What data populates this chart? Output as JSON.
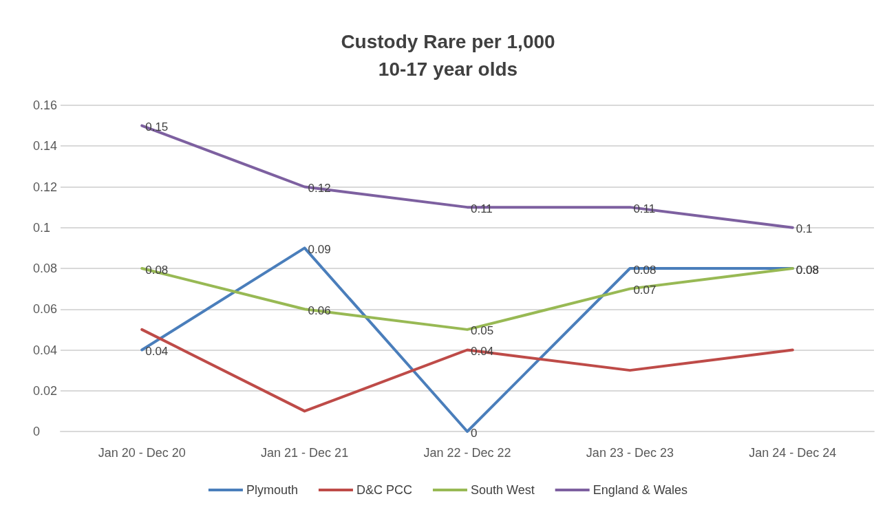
{
  "chart_data": {
    "type": "line",
    "title": "Custody Rare per 1,000\n10-17 year olds",
    "categories": [
      "Jan 20 - Dec 20",
      "Jan 21 - Dec 21",
      "Jan 22 - Dec 22",
      "Jan 23 - Dec 23",
      "Jan 24 - Dec 24"
    ],
    "series": [
      {
        "name": "Plymouth",
        "color": "#4a7ebb",
        "values": [
          0.04,
          0.09,
          0,
          0.08,
          0.08
        ],
        "value_labels": [
          "0.04",
          "0.09",
          "0",
          "0.08",
          "0.08"
        ]
      },
      {
        "name": "D&C PCC",
        "color": "#be4b48",
        "values": [
          0.05,
          0.01,
          0.04,
          0.03,
          0.04
        ],
        "value_labels": [
          null,
          null,
          "0.04",
          null,
          null
        ]
      },
      {
        "name": "South West",
        "color": "#98b954",
        "values": [
          0.08,
          0.06,
          0.05,
          0.07,
          0.08
        ],
        "value_labels": [
          "0.08",
          "0.06",
          "0.05",
          "0.07",
          "0.08"
        ]
      },
      {
        "name": "England & Wales",
        "color": "#7d60a0",
        "values": [
          0.15,
          0.12,
          0.11,
          0.11,
          0.1
        ],
        "value_labels": [
          "0.15",
          "0.12",
          "0.11",
          "0.11",
          "0.1"
        ]
      }
    ],
    "ylim": [
      0,
      0.16
    ],
    "yticks": [
      0,
      0.02,
      0.04,
      0.06,
      0.08,
      0.1,
      0.12,
      0.14,
      0.16
    ],
    "grid": "y",
    "legend": "bottom",
    "marker": "none",
    "line_style": "solid"
  }
}
